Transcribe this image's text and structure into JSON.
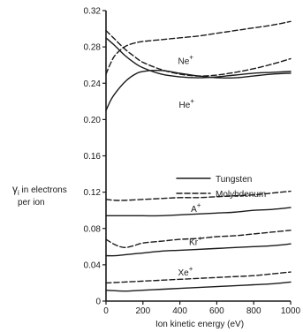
{
  "chart_data": {
    "type": "line",
    "xlabel": "Ion kinetic energy (eV)",
    "ylabel_main": "γ",
    "ylabel_sub": "i",
    "ylabel_line1": " in electrons",
    "ylabel_line2": "per ion",
    "xlim": [
      0,
      1000
    ],
    "ylim": [
      0,
      0.32
    ],
    "x_ticks": [
      {
        "value": 0,
        "label": "0"
      },
      {
        "value": 200,
        "label": "200"
      },
      {
        "value": 400,
        "label": "400"
      },
      {
        "value": 600,
        "label": "600"
      },
      {
        "value": 800,
        "label": "800"
      },
      {
        "value": 1000,
        "label": "1000"
      }
    ],
    "y_ticks": [
      {
        "value": 0,
        "label": "0"
      },
      {
        "value": 0.04,
        "label": "0.04"
      },
      {
        "value": 0.08,
        "label": "0.08"
      },
      {
        "value": 0.12,
        "label": "0.12"
      },
      {
        "value": 0.16,
        "label": "0.16"
      },
      {
        "value": 0.2,
        "label": "0.20"
      },
      {
        "value": 0.24,
        "label": "0.24"
      },
      {
        "value": 0.28,
        "label": "0.28"
      },
      {
        "value": 0.32,
        "label": "0.32"
      }
    ],
    "legend": {
      "position": "right",
      "entries": [
        {
          "label": "Tungsten",
          "style": "solid"
        },
        {
          "label": "Molybdenum",
          "style": "dashed"
        }
      ]
    },
    "ion_labels": [
      {
        "ion": "Ne",
        "sup": "+",
        "x": 390,
        "y": 0.261
      },
      {
        "ion": "He",
        "sup": "+",
        "x": 395,
        "y": 0.213
      },
      {
        "ion": "A",
        "sup": "+",
        "x": 460,
        "y": 0.098
      },
      {
        "ion": "Kr",
        "sup": "+",
        "x": 450,
        "y": 0.062
      },
      {
        "ion": "Xe",
        "sup": "+",
        "x": 390,
        "y": 0.028
      }
    ],
    "series": [
      {
        "ion": "Ne+",
        "metal": "Tungsten",
        "style": "solid",
        "x": [
          0,
          50,
          100,
          150,
          200,
          300,
          400,
          500,
          600,
          700,
          800,
          900,
          1000
        ],
        "y": [
          0.29,
          0.281,
          0.271,
          0.263,
          0.257,
          0.25,
          0.247,
          0.246,
          0.247,
          0.249,
          0.251,
          0.252,
          0.253
        ]
      },
      {
        "ion": "Ne+",
        "metal": "Molybdenum",
        "style": "dashed",
        "x": [
          0,
          50,
          100,
          150,
          200,
          300,
          400,
          500,
          600,
          700,
          800,
          900,
          1000
        ],
        "y": [
          0.298,
          0.288,
          0.278,
          0.27,
          0.263,
          0.255,
          0.25,
          0.248,
          0.249,
          0.252,
          0.256,
          0.261,
          0.267
        ]
      },
      {
        "ion": "He+",
        "metal": "Tungsten",
        "style": "solid",
        "x": [
          0,
          25,
          50,
          100,
          150,
          200,
          300,
          400,
          500,
          600,
          700,
          800,
          900,
          1000
        ],
        "y": [
          0.21,
          0.221,
          0.229,
          0.241,
          0.249,
          0.253,
          0.254,
          0.251,
          0.248,
          0.246,
          0.246,
          0.248,
          0.25,
          0.251
        ]
      },
      {
        "ion": "He+",
        "metal": "Molybdenum",
        "style": "dashed",
        "x": [
          0,
          25,
          50,
          100,
          150,
          200,
          300,
          400,
          500,
          600,
          700,
          800,
          900,
          1000
        ],
        "y": [
          0.25,
          0.262,
          0.271,
          0.28,
          0.284,
          0.286,
          0.288,
          0.29,
          0.292,
          0.295,
          0.298,
          0.301,
          0.304,
          0.308
        ]
      },
      {
        "ion": "A+",
        "metal": "Tungsten",
        "style": "solid",
        "x": [
          0,
          100,
          200,
          300,
          400,
          500,
          600,
          700,
          800,
          900,
          1000
        ],
        "y": [
          0.094,
          0.094,
          0.094,
          0.094,
          0.095,
          0.096,
          0.097,
          0.098,
          0.1,
          0.101,
          0.103
        ]
      },
      {
        "ion": "A+",
        "metal": "Molybdenum",
        "style": "dashed",
        "x": [
          0,
          50,
          100,
          200,
          300,
          400,
          500,
          600,
          700,
          800,
          900,
          1000
        ],
        "y": [
          0.112,
          0.111,
          0.111,
          0.112,
          0.113,
          0.114,
          0.114,
          0.115,
          0.116,
          0.117,
          0.119,
          0.121
        ]
      },
      {
        "ion": "Kr+",
        "metal": "Tungsten",
        "style": "solid",
        "x": [
          0,
          50,
          100,
          200,
          300,
          400,
          500,
          600,
          700,
          800,
          900,
          1000
        ],
        "y": [
          0.05,
          0.05,
          0.051,
          0.053,
          0.055,
          0.056,
          0.057,
          0.058,
          0.059,
          0.06,
          0.061,
          0.063
        ]
      },
      {
        "ion": "Kr+",
        "metal": "Molybdenum",
        "style": "dashed",
        "x": [
          0,
          50,
          100,
          150,
          200,
          300,
          400,
          500,
          600,
          700,
          800,
          900,
          1000
        ],
        "y": [
          0.068,
          0.062,
          0.059,
          0.061,
          0.064,
          0.066,
          0.068,
          0.069,
          0.071,
          0.072,
          0.074,
          0.076,
          0.078
        ]
      },
      {
        "ion": "Xe+",
        "metal": "Tungsten",
        "style": "solid",
        "x": [
          0,
          100,
          200,
          300,
          400,
          500,
          600,
          700,
          800,
          900,
          1000
        ],
        "y": [
          0.012,
          0.011,
          0.012,
          0.013,
          0.014,
          0.015,
          0.016,
          0.017,
          0.018,
          0.019,
          0.021
        ]
      },
      {
        "ion": "Xe+",
        "metal": "Molybdenum",
        "style": "dashed",
        "x": [
          0,
          100,
          200,
          300,
          400,
          500,
          600,
          700,
          800,
          900,
          1000
        ],
        "y": [
          0.02,
          0.021,
          0.022,
          0.023,
          0.024,
          0.025,
          0.026,
          0.027,
          0.028,
          0.03,
          0.032
        ]
      }
    ]
  }
}
